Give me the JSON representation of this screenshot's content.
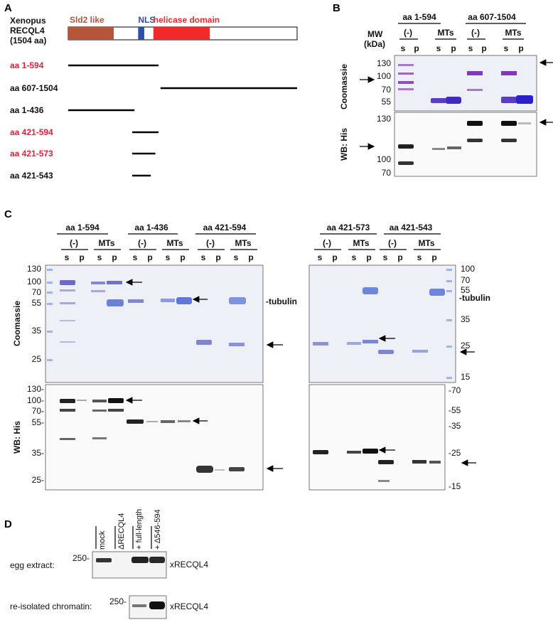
{
  "panels": {
    "A": "A",
    "B": "B",
    "C": "C",
    "D": "D"
  },
  "panelA": {
    "protein_name": [
      "Xenopus",
      "RECQL4",
      "(1504 aa)"
    ],
    "total_length": 1504,
    "domains": [
      {
        "label": "Sld2 like",
        "start": 1,
        "end": 300,
        "color": "#b5563a"
      },
      {
        "label": "NLS",
        "start": 460,
        "end": 500,
        "color": "#2e4ea8"
      },
      {
        "label": "helicase domain",
        "start": 560,
        "end": 930,
        "color": "#ee2a2a"
      }
    ],
    "constructs": [
      {
        "label": "aa 1-594",
        "start": 1,
        "end": 594,
        "highlight": true
      },
      {
        "label": "aa 607-1504",
        "start": 607,
        "end": 1504,
        "highlight": false
      },
      {
        "label": "aa 1-436",
        "start": 1,
        "end": 436,
        "highlight": false
      },
      {
        "label": "aa 421-594",
        "start": 421,
        "end": 594,
        "highlight": true
      },
      {
        "label": "aa 421-573",
        "start": 421,
        "end": 573,
        "highlight": true
      },
      {
        "label": "aa 421-543",
        "start": 421,
        "end": 543,
        "highlight": false
      }
    ]
  },
  "panelB": {
    "mw_label_1": "MW",
    "mw_label_2": "(kDa)",
    "groups": [
      "aa 1-594",
      "aa 607-1504"
    ],
    "conditions": [
      "(-)",
      "MTs",
      "(-)",
      "MTs"
    ],
    "lanes": [
      "s",
      "p",
      "s",
      "p",
      "s",
      "p",
      "s",
      "p"
    ],
    "coomassie_label": "Coomassie",
    "wb_label": "WB: His",
    "coomassie_markers": [
      "130",
      "100",
      "70",
      "55"
    ],
    "wb_markers": [
      "130",
      "100",
      "70"
    ]
  },
  "panelC": {
    "left_groups": [
      "aa 1-594",
      "aa 1-436",
      "aa 421-594"
    ],
    "right_groups": [
      "aa 421-573",
      "aa 421-543"
    ],
    "conditions": [
      "(-)",
      "MTs"
    ],
    "lane_s": "s",
    "lane_p": "p",
    "coomassie_label": "Coomassie",
    "wb_label": "WB: His",
    "tubulin_label": "-tubulin",
    "left_coom_markers": [
      "130",
      "100",
      "70",
      "55",
      "35",
      "25"
    ],
    "left_wb_markers": [
      "130-",
      "100-",
      "70-",
      "55-",
      "35-",
      "25-"
    ],
    "right_coom_markers": [
      "100",
      "70",
      "55",
      "35",
      "25",
      "15"
    ],
    "right_wb_markers": [
      "-70",
      "-55",
      "-35",
      "-25",
      "-15"
    ]
  },
  "panelD": {
    "lanes": [
      "mock",
      "ΔRECQL4",
      "+ full-length",
      "+ Δ546-594"
    ],
    "row1_label": "egg extract:",
    "row2_label": "re-isolated chromatin:",
    "marker": "250-",
    "band_label": "xRECQL4"
  }
}
